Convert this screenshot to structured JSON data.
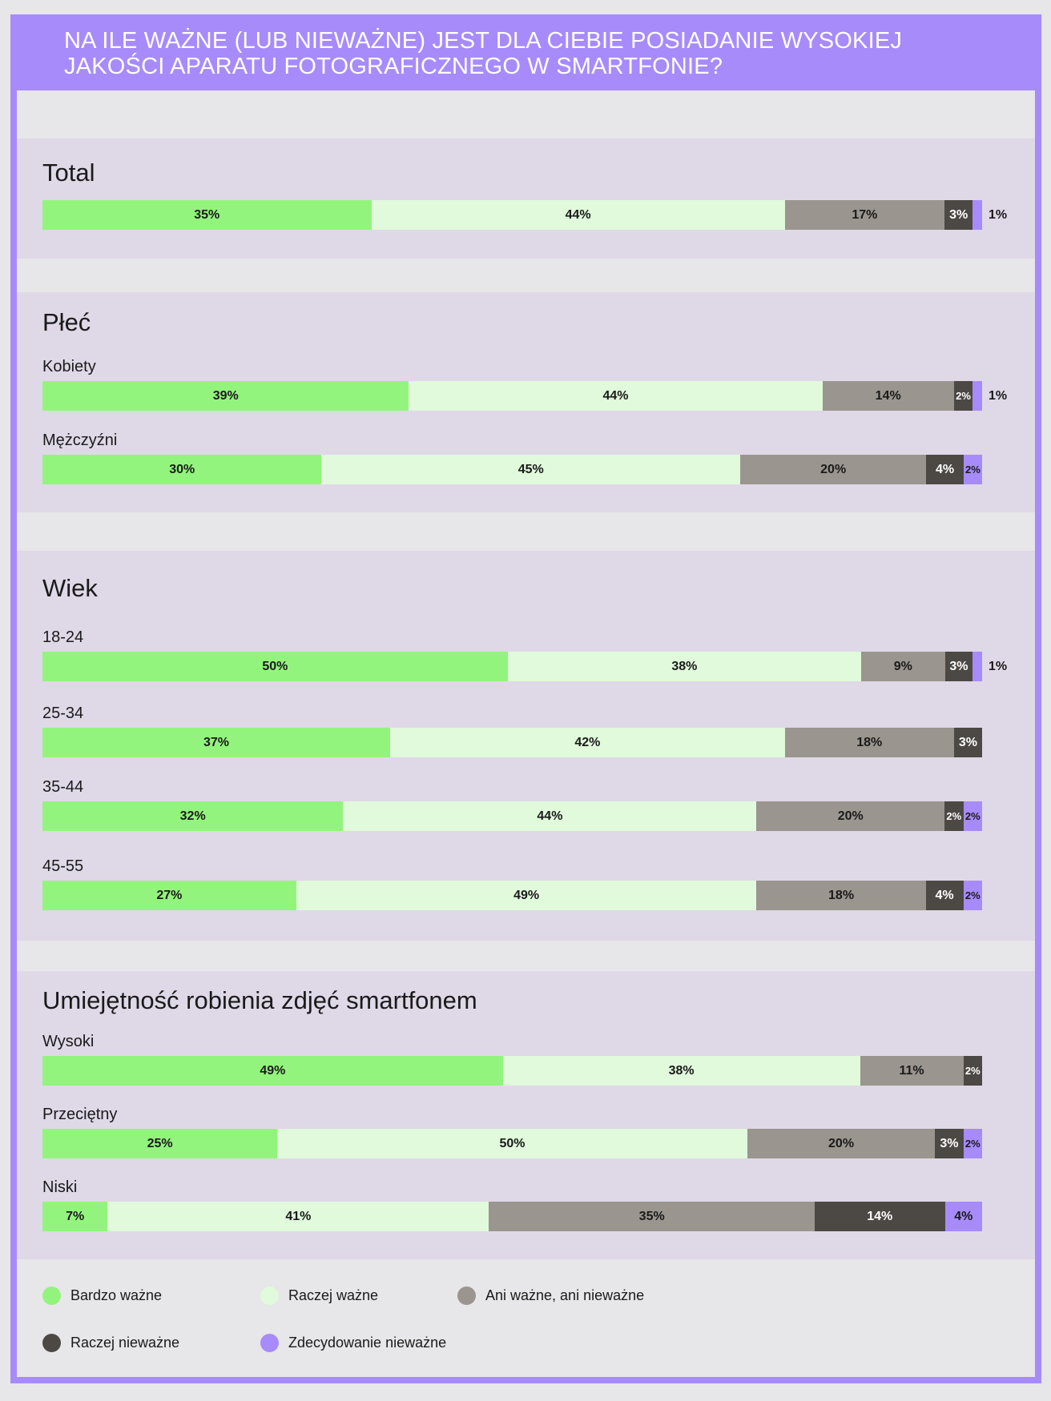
{
  "header": {
    "title_line1": "NA ILE WAŻNE (LUB NIEWAŻNE) JEST DLA CIEBIE POSIADANIE WYSOKIEJ",
    "title_line2": "JAKOŚCI APARATU FOTOGRAFICZNEGO W SMARTFONIE?"
  },
  "colors": {
    "header": "#a78bfa",
    "panel": "#dfd8e7",
    "background": "#e7e6e8",
    "bardzo_wazne": "#93f47d",
    "raczej_wazne": "#e0fadb",
    "ani": "#9a958e",
    "raczej_niewazne": "#4c4843",
    "zdecydowanie_niewazne": "#a78bfa"
  },
  "chart_data": {
    "type": "bar",
    "stacked": true,
    "orientation": "horizontal",
    "series_names": [
      "Bardzo ważne",
      "Raczej ważne",
      "Ani ważne, ani nieważne",
      "Raczej nieważne",
      "Zdecydowanie nieważne"
    ],
    "groups": [
      {
        "title": "Total",
        "rows": [
          {
            "label": "",
            "values": [
              35,
              44,
              17,
              3,
              1
            ]
          }
        ]
      },
      {
        "title": "Płeć",
        "rows": [
          {
            "label": "Kobiety",
            "values": [
              39,
              44,
              14,
              2,
              1
            ]
          },
          {
            "label": "Mężczyźni",
            "values": [
              30,
              45,
              20,
              4,
              2
            ]
          }
        ]
      },
      {
        "title": "Wiek",
        "rows": [
          {
            "label": "18-24",
            "values": [
              50,
              38,
              9,
              3,
              1
            ]
          },
          {
            "label": "25-34",
            "values": [
              37,
              42,
              18,
              3,
              0
            ]
          },
          {
            "label": "35-44",
            "values": [
              32,
              44,
              20,
              2,
              2
            ]
          },
          {
            "label": "45-55",
            "values": [
              27,
              49,
              18,
              4,
              2
            ]
          }
        ]
      },
      {
        "title": "Umiejętność robienia zdjęć smartfonem",
        "rows": [
          {
            "label": "Wysoki",
            "values": [
              49,
              38,
              11,
              2,
              0
            ]
          },
          {
            "label": "Przeciętny",
            "values": [
              25,
              50,
              20,
              3,
              2
            ]
          },
          {
            "label": "Niski",
            "values": [
              7,
              41,
              35,
              14,
              4
            ]
          }
        ]
      }
    ]
  },
  "legend": [
    {
      "label": "Bardzo ważne",
      "color": "#93f47d"
    },
    {
      "label": "Raczej ważne",
      "color": "#e0fadb"
    },
    {
      "label": "Ani ważne, ani nieważne",
      "color": "#9a958e"
    },
    {
      "label": "Raczej nieważne",
      "color": "#4c4843"
    },
    {
      "label": "Zdecydowanie nieważne",
      "color": "#a78bfa"
    }
  ]
}
